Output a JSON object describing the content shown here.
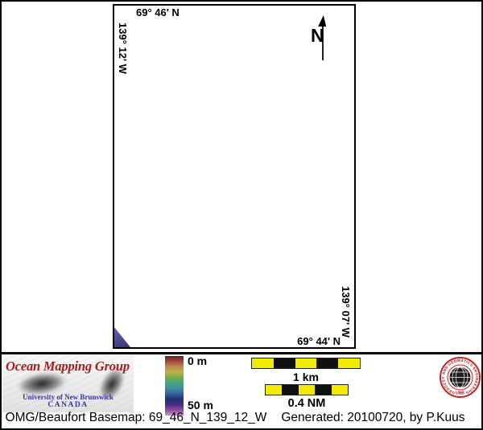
{
  "map": {
    "top_lat": "69° 46' N",
    "left_lon": "139° 12' W",
    "right_lon": "139° 07' W",
    "bottom_lat": "69° 44' N",
    "north_letter": "N"
  },
  "legend": {
    "org_title": "Ocean Mapping Group",
    "org_subtitle": "University of New Brunswick",
    "org_country": "CANADA",
    "colorbar": {
      "top_label": "0 m",
      "bottom_label": "50 m",
      "gradient_stops": [
        "#5e1f22",
        "#a84a3c",
        "#c08a4e",
        "#b8b449",
        "#6fae4c",
        "#46a37c",
        "#3f8da6",
        "#33609f",
        "#20306e",
        "#4f2a85",
        "#8f4f9e",
        "#c39ac4"
      ]
    },
    "scalebars": [
      {
        "label": "1 km",
        "segments": [
          "#f2ea00",
          "#111111",
          "#f2ea00",
          "#111111",
          "#f2ea00"
        ]
      },
      {
        "label": "0.4 NM",
        "segments": [
          "#f2ea00",
          "#111111",
          "#f2ea00",
          "#111111",
          "#f2ea00"
        ]
      }
    ],
    "seal": {
      "ring_text": "GEODESY AND GEOMATICS ENGINEERING",
      "bottom_text": "UNB"
    }
  },
  "footer": {
    "caption_product": "OMG/Beaufort Basemap: 69_46_N_139_12_W",
    "caption_generated": "Generated: 20100720, by P.Kuus"
  },
  "colors": {
    "org_title_red": "#9e1f1f",
    "org_subtitle_blue": "#3434a6",
    "seal_red": "#c42222",
    "scalebar_yellow": "#f2ea00",
    "map_corner_data_blue": "#4b4b92"
  }
}
